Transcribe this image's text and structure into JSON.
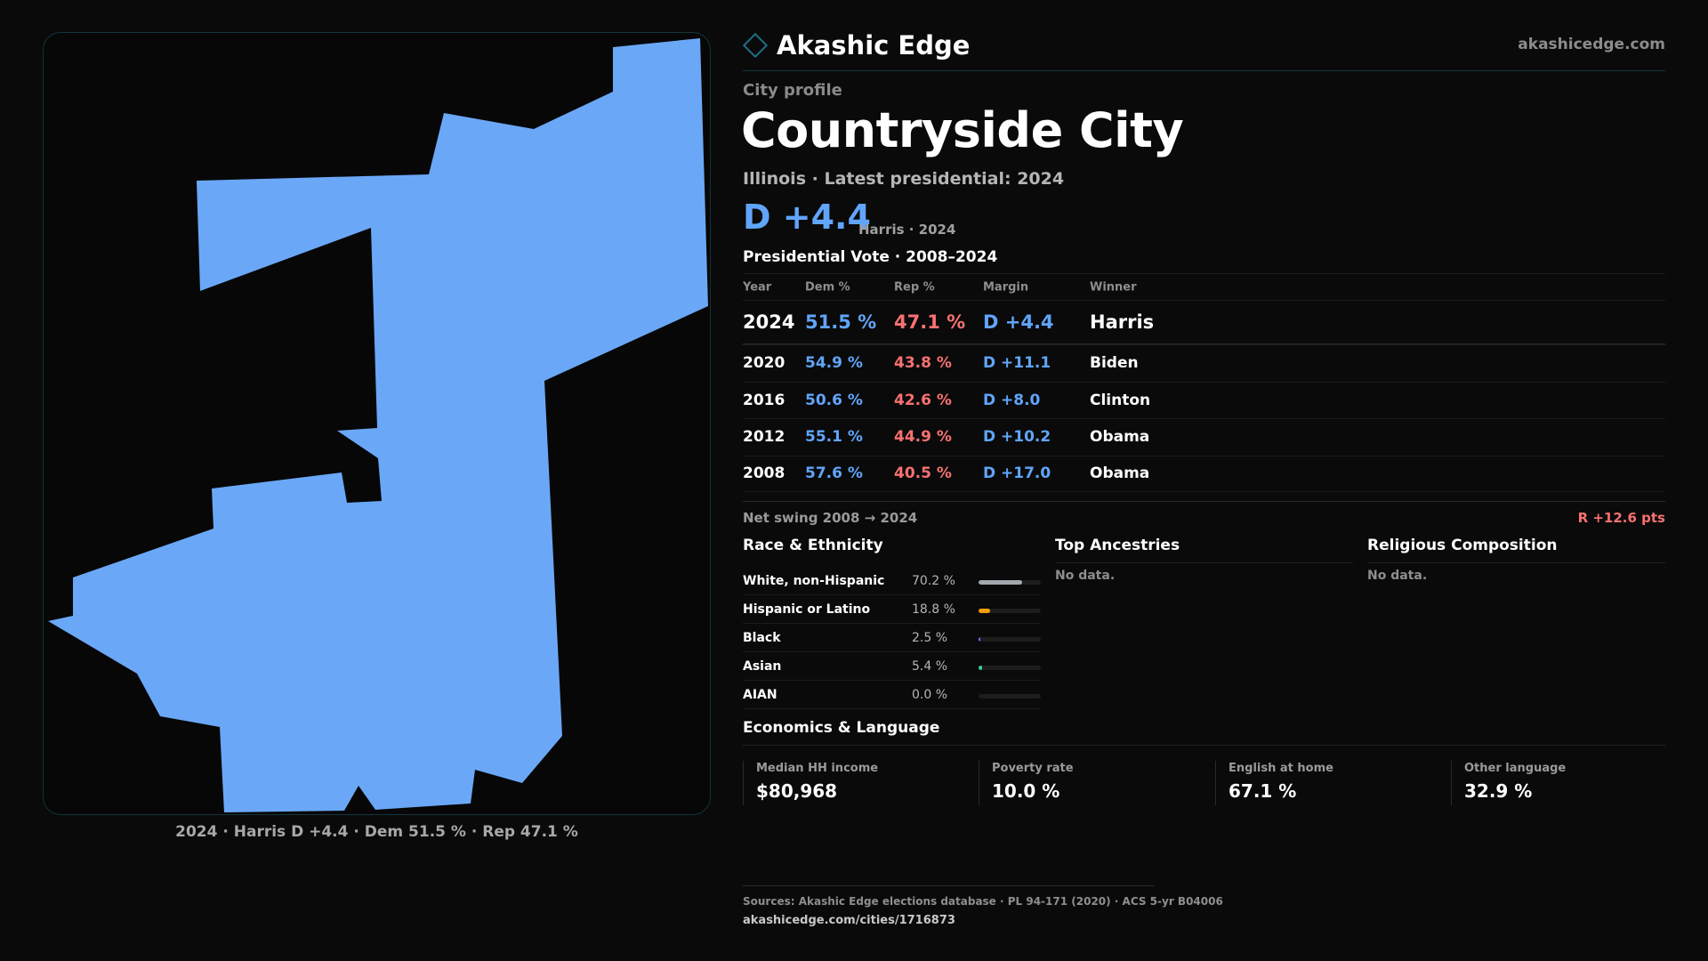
{
  "brand": {
    "name": "Akashic Edge",
    "site": "akashicedge.com",
    "accent_color": "#1d6f86"
  },
  "map": {
    "fill_color": "#6aa8f7",
    "caption": "2024 · Harris D +4.4 · Dem 51.5 % · Rep 47.1 %"
  },
  "profile": {
    "eyebrow": "City profile",
    "title": "Countryside City",
    "subtitle": "Illinois · Latest presidential: 2024",
    "margin": "D +4.4",
    "margin_note": "Harris · 2024"
  },
  "vote": {
    "title": "Presidential Vote · 2008–2024",
    "headers": {
      "year": "Year",
      "dem": "Dem %",
      "rep": "Rep %",
      "margin": "Margin",
      "winner": "Winner"
    },
    "rows": [
      {
        "year": "2024",
        "dem": "51.5 %",
        "rep": "47.1 %",
        "margin": "D +4.4",
        "winner": "Harris"
      },
      {
        "year": "2020",
        "dem": "54.9 %",
        "rep": "43.8 %",
        "margin": "D +11.1",
        "winner": "Biden"
      },
      {
        "year": "2016",
        "dem": "50.6 %",
        "rep": "42.6 %",
        "margin": "D +8.0",
        "winner": "Clinton"
      },
      {
        "year": "2012",
        "dem": "55.1 %",
        "rep": "44.9 %",
        "margin": "D +10.2",
        "winner": "Obama"
      },
      {
        "year": "2008",
        "dem": "57.6 %",
        "rep": "40.5 %",
        "margin": "D +17.0",
        "winner": "Obama"
      }
    ],
    "swing_label": "Net swing 2008 → 2024",
    "swing_value": "R +12.6 pts",
    "dem_color": "#60a5fa",
    "rep_color": "#f87171"
  },
  "race": {
    "title": "Race & Ethnicity",
    "rows": [
      {
        "label": "White, non-Hispanic",
        "value": "70.2 %",
        "fraction": 0.702,
        "color": "#a3a8b0"
      },
      {
        "label": "Hispanic or Latino",
        "value": "18.8 %",
        "fraction": 0.188,
        "color": "#f59e0b"
      },
      {
        "label": "Black",
        "value": "2.5 %",
        "fraction": 0.025,
        "color": "#8b5cf6"
      },
      {
        "label": "Asian",
        "value": "5.4 %",
        "fraction": 0.054,
        "color": "#34d399"
      },
      {
        "label": "AIAN",
        "value": "0.0 %",
        "fraction": 0.0,
        "color": "#888888"
      }
    ]
  },
  "ancestries": {
    "title": "Top Ancestries",
    "empty": "No data."
  },
  "religion": {
    "title": "Religious Composition",
    "empty": "No data."
  },
  "economics": {
    "title": "Economics & Language",
    "cards": [
      {
        "label": "Median HH income",
        "value": "$80,968"
      },
      {
        "label": "Poverty rate",
        "value": "10.0 %"
      },
      {
        "label": "English at home",
        "value": "67.1 %"
      },
      {
        "label": "Other language",
        "value": "32.9 %"
      }
    ]
  },
  "sources": {
    "text": "Sources: Akashic Edge elections database · PL 94-171 (2020) · ACS 5-yr B04006",
    "url": "akashicedge.com/cities/1716873"
  }
}
